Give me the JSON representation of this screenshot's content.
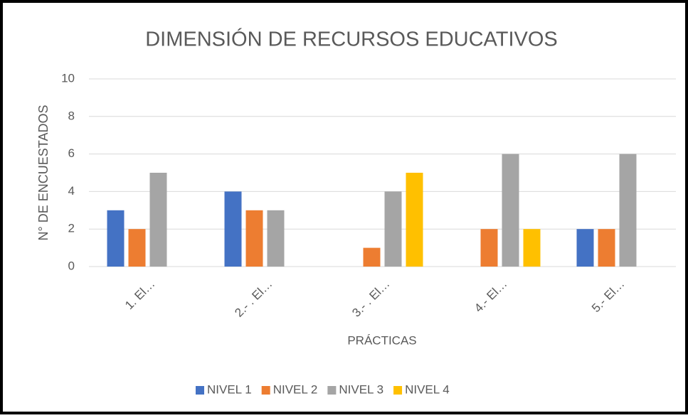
{
  "chart_data": {
    "type": "bar",
    "title": "DIMENSIÓN DE RECURSOS EDUCATIVOS",
    "x_label": "PRÁCTICAS",
    "y_label": "N° DE ENCUESTADOS",
    "categories": [
      "1. El…",
      "2.- . El…",
      "3.- . El…",
      "4.- El…",
      "5.- El…"
    ],
    "series": [
      {
        "name": "NIVEL 1",
        "color": "#4472c4",
        "values": [
          3,
          4,
          0,
          0,
          2
        ]
      },
      {
        "name": "NIVEL 2",
        "color": "#ed7d31",
        "values": [
          2,
          3,
          1,
          2,
          2
        ]
      },
      {
        "name": "NIVEL 3",
        "color": "#a5a5a5",
        "values": [
          5,
          3,
          4,
          6,
          6
        ]
      },
      {
        "name": "NIVEL 4",
        "color": "#ffc000",
        "values": [
          0,
          0,
          5,
          2,
          0
        ]
      }
    ],
    "ylim": [
      0,
      10
    ],
    "yticks": [
      0,
      2,
      4,
      6,
      8,
      10
    ],
    "grid": true,
    "legend": "bottom"
  }
}
